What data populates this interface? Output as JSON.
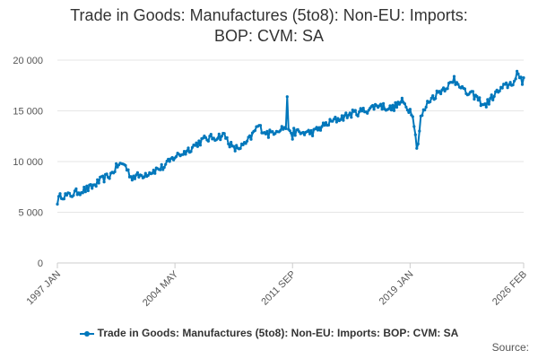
{
  "chart_data": {
    "type": "line",
    "title_line1": "Trade in Goods: Manufactures (5to8): Non-EU: Imports:",
    "title_line2": "BOP: CVM: SA",
    "xlabel": "",
    "ylabel": "",
    "ylim": [
      0,
      20000
    ],
    "y_ticks": [
      {
        "value": 0,
        "label": "0"
      },
      {
        "value": 5000,
        "label": "5 000"
      },
      {
        "value": 10000,
        "label": "10 000"
      },
      {
        "value": 15000,
        "label": "15 000"
      },
      {
        "value": 20000,
        "label": "20 000"
      }
    ],
    "x_ticks": [
      {
        "index": 0,
        "label": "1997 JAN"
      },
      {
        "index": 88,
        "label": "2004 MAY"
      },
      {
        "index": 176,
        "label": "2011 SEP"
      },
      {
        "index": 264,
        "label": "2019 JAN"
      },
      {
        "index": 349,
        "label": "2026 FEB"
      }
    ],
    "x_count": 350,
    "grid": true,
    "legend_position": "bottom",
    "series": [
      {
        "name": "Trade in Goods: Manufactures (5to8): Non-EU: Imports: BOP: CVM: SA",
        "color": "#0077bb",
        "anchors": [
          [
            0,
            6100
          ],
          [
            3,
            6700
          ],
          [
            8,
            6600
          ],
          [
            15,
            7000
          ],
          [
            25,
            7400
          ],
          [
            32,
            8100
          ],
          [
            40,
            8700
          ],
          [
            45,
            9600
          ],
          [
            50,
            9800
          ],
          [
            55,
            8500
          ],
          [
            62,
            8600
          ],
          [
            70,
            9000
          ],
          [
            80,
            9500
          ],
          [
            88,
            10500
          ],
          [
            95,
            10900
          ],
          [
            105,
            11800
          ],
          [
            110,
            12200
          ],
          [
            118,
            12400
          ],
          [
            125,
            12600
          ],
          [
            132,
            11200
          ],
          [
            140,
            11600
          ],
          [
            145,
            12400
          ],
          [
            150,
            13500
          ],
          [
            158,
            12700
          ],
          [
            165,
            13200
          ],
          [
            172,
            13400
          ],
          [
            176,
            13000
          ],
          [
            182,
            12800
          ],
          [
            192,
            12900
          ],
          [
            200,
            13600
          ],
          [
            210,
            14200
          ],
          [
            220,
            14700
          ],
          [
            232,
            15100
          ],
          [
            240,
            15600
          ],
          [
            250,
            15200
          ],
          [
            258,
            15900
          ],
          [
            262,
            15300
          ],
          [
            266,
            14800
          ],
          [
            268,
            12500
          ],
          [
            270,
            11800
          ],
          [
            272,
            14300
          ],
          [
            278,
            16000
          ],
          [
            285,
            16800
          ],
          [
            292,
            17500
          ],
          [
            300,
            17900
          ],
          [
            305,
            16800
          ],
          [
            312,
            16500
          ],
          [
            320,
            15500
          ],
          [
            328,
            16700
          ],
          [
            335,
            17400
          ],
          [
            342,
            17900
          ],
          [
            346,
            18400
          ],
          [
            349,
            18600
          ]
        ],
        "noise_amplitude": 380,
        "spikes": [
          {
            "index": 172,
            "value": 16400
          },
          {
            "index": 176,
            "value": 12200
          },
          {
            "index": 269,
            "value": 11300
          },
          {
            "index": 297,
            "value": 18400
          },
          {
            "index": 344,
            "value": 18900
          },
          {
            "index": 348,
            "value": 17600
          }
        ]
      }
    ],
    "source_label": "Source:"
  }
}
